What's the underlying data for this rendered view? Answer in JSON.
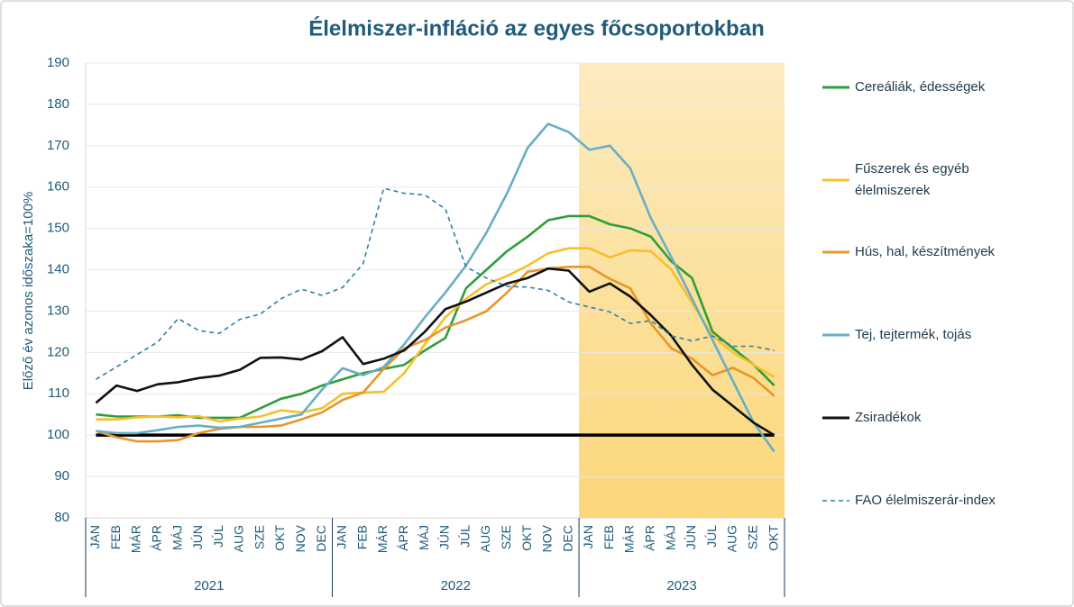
{
  "chart_data": {
    "type": "line",
    "title": "Élelmiszer-infláció az egyes főcsoportokban",
    "y_label": "Előző év azonos időszaka=100%",
    "categories": [
      "JAN",
      "FEB",
      "MÁR",
      "ÁPR",
      "MÁJ",
      "JÚN",
      "JÚL",
      "AUG",
      "SZE",
      "OKT",
      "NOV",
      "DEC",
      "JAN",
      "FEB",
      "MÁR",
      "ÁPR",
      "MÁJ",
      "JÚN",
      "JÚL",
      "AUG",
      "SZE",
      "OKT",
      "NOV",
      "DEC",
      "JAN",
      "FEB",
      "MÁR",
      "ÁPR",
      "MÁJ",
      "JÚN",
      "JÚL",
      "AUG",
      "SZE",
      "OKT"
    ],
    "category_groups": [
      "2021",
      "2022",
      "2023"
    ],
    "shaded_group": "2023",
    "baseline": 100,
    "ylim": [
      80,
      190
    ],
    "yticks": [
      80,
      90,
      100,
      110,
      120,
      130,
      140,
      150,
      160,
      170,
      180,
      190
    ],
    "grid": true,
    "legend": "right",
    "series": [
      {
        "name": "Cereáliák, édességek",
        "color": "#2e9e3a",
        "values": [
          105,
          104.5,
          104.5,
          104.5,
          104.8,
          104.2,
          104.2,
          104.2,
          106.5,
          108.8,
          110,
          112,
          113.5,
          115,
          116,
          117,
          120.5,
          123.5,
          135.5,
          140,
          144.5,
          148,
          152,
          153,
          153,
          151,
          150,
          148,
          142,
          138,
          125,
          121,
          117,
          112
        ]
      },
      {
        "name": "Fűszerek és egyéb élelmiszerek",
        "color": "#f5c02a",
        "values": [
          103.8,
          103.8,
          104.3,
          104.5,
          104.3,
          104.6,
          103.3,
          104,
          104.5,
          106,
          105.5,
          106.5,
          110,
          110.3,
          110.5,
          115,
          122,
          128.5,
          133,
          136.5,
          138.5,
          141,
          144,
          145.2,
          145.2,
          143,
          144.7,
          144.5,
          140,
          132,
          124,
          120,
          117,
          114
        ]
      },
      {
        "name": "Hús, hal, készítmények",
        "color": "#e8962a",
        "values": [
          101,
          99.5,
          98.5,
          98.5,
          98.8,
          100.5,
          101.5,
          102,
          102,
          102.3,
          103.8,
          105.5,
          108.5,
          110.3,
          116,
          121,
          123,
          126,
          127.8,
          130,
          134.5,
          139.5,
          140.3,
          140.7,
          140.7,
          137.8,
          135.5,
          127,
          121,
          118.5,
          114.5,
          116.3,
          113.8,
          109.5
        ]
      },
      {
        "name": "Tej, tejtermék, tojás",
        "color": "#6aaec4",
        "values": [
          101,
          100.5,
          100.5,
          101.2,
          102,
          102.3,
          101.8,
          102,
          103,
          104,
          105,
          111,
          116.2,
          114.5,
          116.5,
          122,
          128.5,
          134.5,
          141,
          149,
          158.5,
          169.5,
          175.3,
          173.3,
          169,
          170,
          164.5,
          152.5,
          143,
          133,
          123,
          113,
          103,
          96
        ]
      },
      {
        "name": "Zsiradékok",
        "color": "#111111",
        "values": [
          107.8,
          112,
          110.7,
          112.3,
          112.8,
          113.8,
          114.4,
          115.8,
          118.7,
          118.8,
          118.3,
          120.3,
          123.7,
          117.2,
          118.5,
          120.5,
          125,
          130.5,
          132.3,
          134.5,
          136.7,
          138,
          140.3,
          139.8,
          134.7,
          136.7,
          133.5,
          129,
          124,
          117,
          111,
          107,
          103,
          100
        ]
      },
      {
        "name": "FAO élelmiszerár-index",
        "color": "#2e7fa6",
        "dashed": true,
        "values": [
          113.5,
          116.5,
          119.5,
          122.5,
          128.2,
          125.3,
          124.6,
          128,
          129.3,
          133,
          135.3,
          133.8,
          135.7,
          141.5,
          159.7,
          158.5,
          158.1,
          154.7,
          140.7,
          138,
          136,
          135.8,
          135,
          132.2,
          131,
          129.8,
          127,
          127.7,
          124,
          122.8,
          124,
          121.5,
          121.5,
          120.5
        ]
      }
    ]
  }
}
